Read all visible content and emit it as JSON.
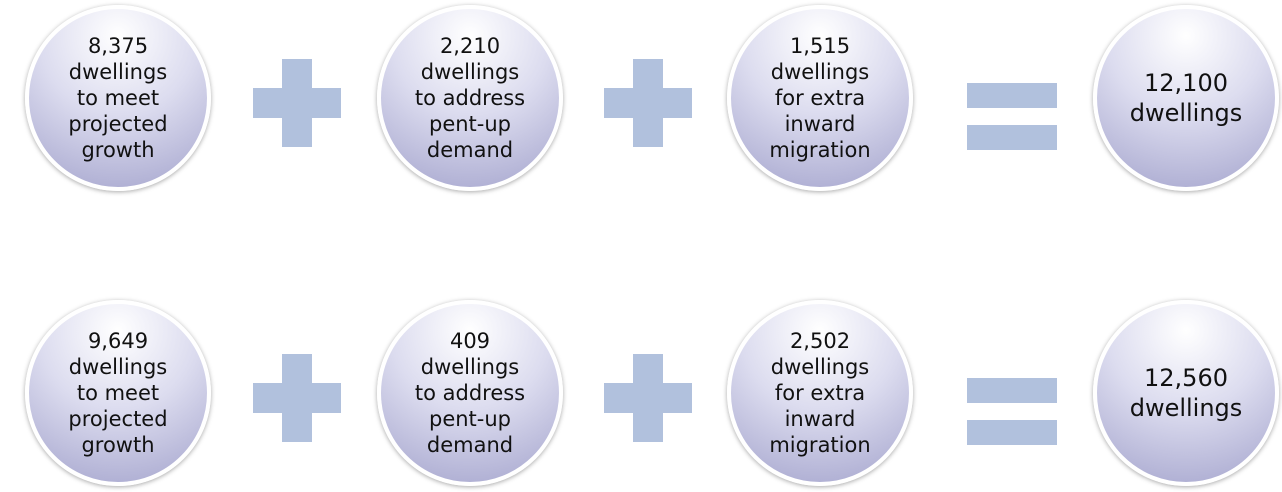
{
  "rows": [
    {
      "terms": [
        {
          "lines": [
            "8,375",
            "dwellings",
            "to meet",
            "projected",
            "growth"
          ]
        },
        {
          "lines": [
            "2,210",
            "dwellings",
            "to address",
            "pent-up",
            "demand"
          ]
        },
        {
          "lines": [
            "1,515",
            "dwellings",
            "for extra",
            "inward",
            "migration"
          ]
        }
      ],
      "total": {
        "lines": [
          "12,100",
          "dwellings"
        ]
      }
    },
    {
      "terms": [
        {
          "lines": [
            "9,649",
            "dwellings",
            "to meet",
            "projected",
            "growth"
          ]
        },
        {
          "lines": [
            "409",
            "dwellings",
            "to address",
            "pent-up",
            "demand"
          ]
        },
        {
          "lines": [
            "2,502",
            "dwellings",
            "for extra",
            "inward",
            "migration"
          ]
        }
      ],
      "total": {
        "lines": [
          "12,560",
          "dwellings"
        ]
      }
    }
  ]
}
